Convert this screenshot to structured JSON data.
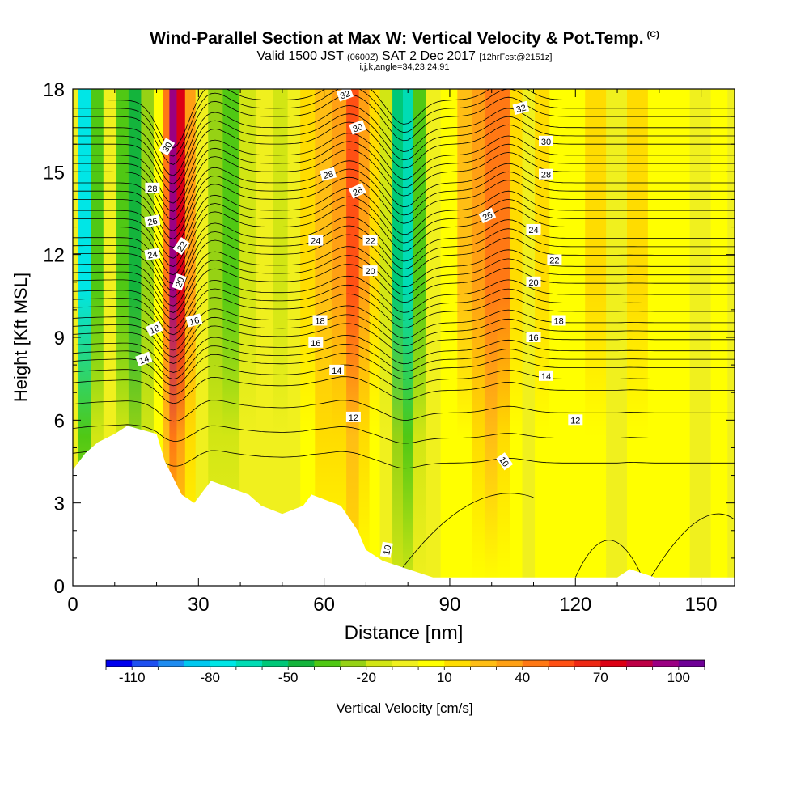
{
  "chart_data": {
    "type": "heatmap",
    "title": "Wind-Parallel Section at Max W: Vertical Velocity & Pot.Temp.",
    "copyright_mark": "(C)",
    "subtitle": {
      "valid": "Valid 1500 JST",
      "utc": "(0600Z)",
      "date": "SAT 2 Dec 2017",
      "forecast": "[12hrFcst@2151z]"
    },
    "subtitle2": "i,j,k,angle=34,23,24,91",
    "xlabel": "Distance [nm]",
    "ylabel": "Height [Kft MSL]",
    "xlim": [
      0,
      158
    ],
    "ylim": [
      0,
      18
    ],
    "x_ticks": [
      "0",
      "30",
      "60",
      "90",
      "120",
      "150"
    ],
    "y_ticks": [
      "0",
      "3",
      "6",
      "9",
      "12",
      "15",
      "18"
    ],
    "colorbar": {
      "label": "Vertical Velocity [cm/s]",
      "tick_labels": [
        "-110",
        "-80",
        "-50",
        "-20",
        "10",
        "40",
        "70",
        "100"
      ],
      "colors": [
        "#0000ee",
        "#1e50f0",
        "#1e8cf0",
        "#00c8f0",
        "#00e6e6",
        "#00dcb4",
        "#00c878",
        "#14b43c",
        "#50c814",
        "#96d214",
        "#d2e614",
        "#f0f01e",
        "#ffff00",
        "#ffdc00",
        "#ffbe14",
        "#ffa014",
        "#ff7814",
        "#ff5014",
        "#ee2814",
        "#dc0014",
        "#be0046",
        "#9b0082",
        "#6e0096"
      ]
    },
    "velocity_columns": [
      {
        "x": 0,
        "w": -10
      },
      {
        "x": 3,
        "w": -75
      },
      {
        "x": 6,
        "w": -40
      },
      {
        "x": 9,
        "w": -10
      },
      {
        "x": 12,
        "w": -35
      },
      {
        "x": 15,
        "w": -45
      },
      {
        "x": 18,
        "w": -25
      },
      {
        "x": 21,
        "w": 5
      },
      {
        "x": 22.5,
        "w": 45
      },
      {
        "x": 24,
        "w": 95
      },
      {
        "x": 26,
        "w": 75
      },
      {
        "x": 28,
        "w": 30
      },
      {
        "x": 31,
        "w": -5
      },
      {
        "x": 34,
        "w": -25
      },
      {
        "x": 38,
        "w": -40
      },
      {
        "x": 42,
        "w": -20
      },
      {
        "x": 46,
        "w": -5
      },
      {
        "x": 50,
        "w": -20
      },
      {
        "x": 53,
        "w": -10
      },
      {
        "x": 56,
        "w": 10
      },
      {
        "x": 60,
        "w": 25
      },
      {
        "x": 64,
        "w": 35
      },
      {
        "x": 67,
        "w": 50
      },
      {
        "x": 70,
        "w": 35
      },
      {
        "x": 72,
        "w": 15
      },
      {
        "x": 75,
        "w": -20
      },
      {
        "x": 78,
        "w": -55
      },
      {
        "x": 80,
        "w": -70
      },
      {
        "x": 83,
        "w": -40
      },
      {
        "x": 86,
        "w": -10
      },
      {
        "x": 90,
        "w": 5
      },
      {
        "x": 94,
        "w": 20
      },
      {
        "x": 97,
        "w": 30
      },
      {
        "x": 100,
        "w": 45
      },
      {
        "x": 103,
        "w": 40
      },
      {
        "x": 106,
        "w": 15
      },
      {
        "x": 109,
        "w": -5
      },
      {
        "x": 112,
        "w": 10
      },
      {
        "x": 116,
        "w": 0
      },
      {
        "x": 120,
        "w": 5
      },
      {
        "x": 125,
        "w": 15
      },
      {
        "x": 130,
        "w": -5
      },
      {
        "x": 135,
        "w": 10
      },
      {
        "x": 140,
        "w": 0
      },
      {
        "x": 145,
        "w": 5
      },
      {
        "x": 150,
        "w": -5
      },
      {
        "x": 155,
        "w": 0
      },
      {
        "x": 158,
        "w": -5
      }
    ],
    "terrain_height_kft": [
      {
        "x": 0,
        "h": 4.2
      },
      {
        "x": 3,
        "h": 4.8
      },
      {
        "x": 6,
        "h": 5.2
      },
      {
        "x": 10,
        "h": 5.5
      },
      {
        "x": 13,
        "h": 5.8
      },
      {
        "x": 20,
        "h": 5.5
      },
      {
        "x": 22,
        "h": 4.5
      },
      {
        "x": 26,
        "h": 3.3
      },
      {
        "x": 29,
        "h": 3.0
      },
      {
        "x": 33,
        "h": 3.8
      },
      {
        "x": 42,
        "h": 3.3
      },
      {
        "x": 45,
        "h": 2.9
      },
      {
        "x": 50,
        "h": 2.6
      },
      {
        "x": 55,
        "h": 2.9
      },
      {
        "x": 57,
        "h": 3.3
      },
      {
        "x": 64,
        "h": 2.9
      },
      {
        "x": 68,
        "h": 2.0
      },
      {
        "x": 70,
        "h": 1.3
      },
      {
        "x": 74,
        "h": 0.9
      },
      {
        "x": 80,
        "h": 0.6
      },
      {
        "x": 86,
        "h": 0.3
      },
      {
        "x": 90,
        "h": 0.3
      },
      {
        "x": 100,
        "h": 0.3
      },
      {
        "x": 110,
        "h": 0.3
      },
      {
        "x": 130,
        "h": 0.3
      },
      {
        "x": 133,
        "h": 0.6
      },
      {
        "x": 139,
        "h": 0.3
      },
      {
        "x": 158,
        "h": 0.3
      }
    ],
    "theta_contours_base_kft": [
      4.6,
      5.5,
      6.4,
      7.2,
      7.6,
      8.0,
      8.3,
      8.6,
      9.0,
      9.3,
      9.6,
      10.0,
      10.3,
      10.6,
      11.0,
      11.3,
      11.6,
      12.0,
      12.3,
      12.6,
      13.0,
      13.3,
      13.6,
      14.0,
      14.3,
      14.6,
      15.0,
      15.3,
      15.6,
      16.0,
      16.3,
      16.6,
      17.0,
      17.3,
      17.6
    ],
    "contour_labels": [
      {
        "x": 17,
        "y": 8.2,
        "text": "14",
        "rot": -20
      },
      {
        "x": 19.5,
        "y": 9.3,
        "text": "18",
        "rot": -25
      },
      {
        "x": 29,
        "y": 9.6,
        "text": "16",
        "rot": -15
      },
      {
        "x": 25.5,
        "y": 11.0,
        "text": "20",
        "rot": -70
      },
      {
        "x": 26,
        "y": 12.3,
        "text": "22",
        "rot": -55
      },
      {
        "x": 19,
        "y": 12.0,
        "text": "24",
        "rot": -10
      },
      {
        "x": 19,
        "y": 13.2,
        "text": "26",
        "rot": -10
      },
      {
        "x": 19,
        "y": 14.4,
        "text": "28",
        "rot": 0
      },
      {
        "x": 22.5,
        "y": 15.9,
        "text": "30",
        "rot": -60
      },
      {
        "x": 58,
        "y": 12.5,
        "text": "24",
        "rot": 0
      },
      {
        "x": 58,
        "y": 8.8,
        "text": "16",
        "rot": 0
      },
      {
        "x": 59,
        "y": 9.6,
        "text": "18",
        "rot": 0
      },
      {
        "x": 63,
        "y": 7.8,
        "text": "14",
        "rot": 0
      },
      {
        "x": 67,
        "y": 6.1,
        "text": "12",
        "rot": 0
      },
      {
        "x": 61,
        "y": 14.9,
        "text": "28",
        "rot": -15
      },
      {
        "x": 68,
        "y": 14.3,
        "text": "26",
        "rot": -25
      },
      {
        "x": 68,
        "y": 16.6,
        "text": "30",
        "rot": -20
      },
      {
        "x": 65,
        "y": 17.8,
        "text": "32",
        "rot": -20
      },
      {
        "x": 71,
        "y": 12.5,
        "text": "22",
        "rot": 0
      },
      {
        "x": 71,
        "y": 11.4,
        "text": "20",
        "rot": 0
      },
      {
        "x": 75,
        "y": 1.3,
        "text": "10",
        "rot": -80
      },
      {
        "x": 103,
        "y": 4.5,
        "text": "10",
        "rot": 55
      },
      {
        "x": 99,
        "y": 13.4,
        "text": "26",
        "rot": -25
      },
      {
        "x": 107,
        "y": 17.3,
        "text": "32",
        "rot": -15
      },
      {
        "x": 113,
        "y": 16.1,
        "text": "30",
        "rot": 0
      },
      {
        "x": 113,
        "y": 14.9,
        "text": "28",
        "rot": 0
      },
      {
        "x": 110,
        "y": 12.9,
        "text": "24",
        "rot": 0
      },
      {
        "x": 115,
        "y": 11.8,
        "text": "22",
        "rot": 0
      },
      {
        "x": 110,
        "y": 11.0,
        "text": "20",
        "rot": 0
      },
      {
        "x": 116,
        "y": 9.6,
        "text": "18",
        "rot": 0
      },
      {
        "x": 110,
        "y": 9.0,
        "text": "16",
        "rot": 0
      },
      {
        "x": 113,
        "y": 7.6,
        "text": "14",
        "rot": 0
      },
      {
        "x": 120,
        "y": 6.0,
        "text": "12",
        "rot": 0
      }
    ]
  }
}
